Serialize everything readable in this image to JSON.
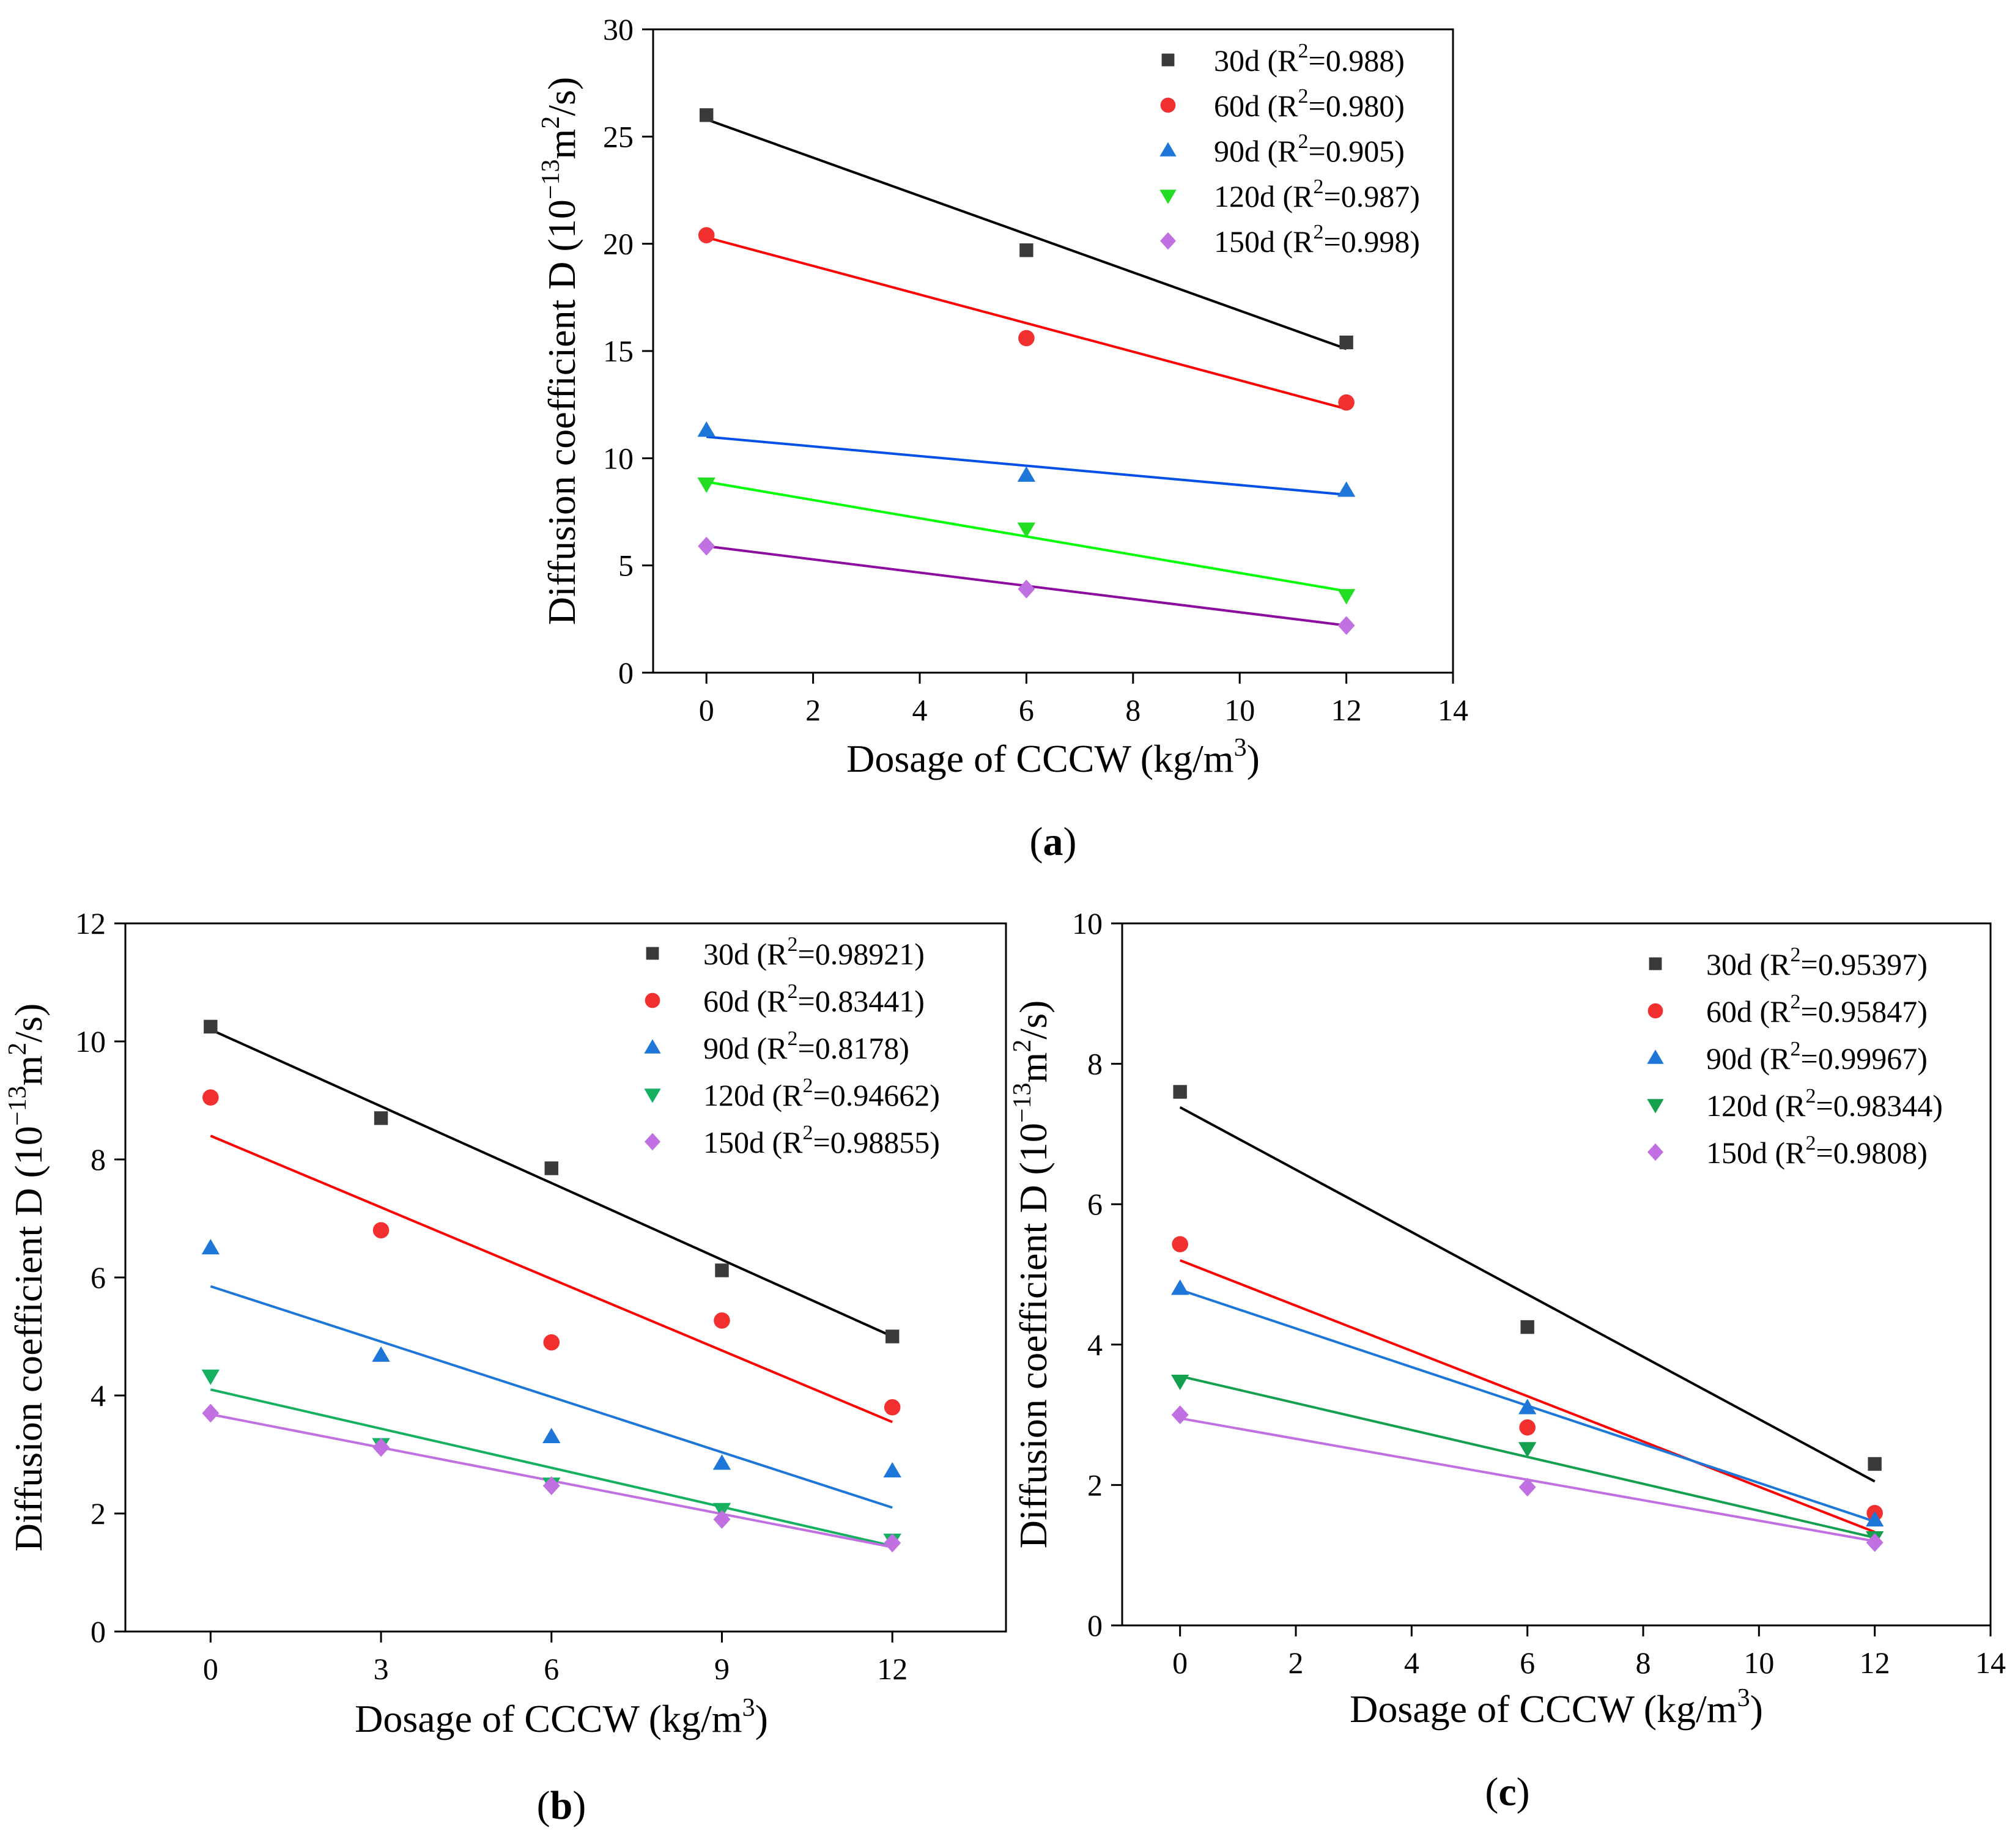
{
  "series_colors": {
    "a": {
      "30d": "#3a3a3a",
      "60d": "#f23030",
      "90d": "#1e77d8",
      "120d": "#22dd22",
      "150d": "#c070e0"
    },
    "b": {
      "30d": "#3a3a3a",
      "60d": "#f23030",
      "90d": "#1e77d8",
      "120d": "#15b060",
      "150d": "#c070e0"
    },
    "c": {
      "30d": "#3a3a3a",
      "60d": "#f23030",
      "90d": "#1e77d8",
      "120d": "#15a050",
      "150d": "#c070e0"
    }
  },
  "line_colors": {
    "a": [
      "#000000",
      "#ff0000",
      "#0050e6",
      "#00ff00",
      "#8b0c9e"
    ],
    "b": [
      "#000000",
      "#ff0000",
      "#1e77d8",
      "#15b060",
      "#c070e0"
    ],
    "c": [
      "#000000",
      "#ff0000",
      "#1e77d8",
      "#15a050",
      "#c070e0"
    ]
  },
  "chart_data": [
    {
      "id": "a",
      "caption_letter": "a",
      "type": "scatter",
      "xlabel": "Dosage of CCCW (kg/m",
      "xlabel_sup": "3",
      "xlabel_end": ")",
      "ylabel_main": "Diffusion coefficient D (10",
      "ylabel_exp": "−13",
      "ylabel_mid": "m",
      "ylabel_sup2": "2",
      "ylabel_end": "/s)",
      "xlim": [
        -1,
        14
      ],
      "ylim": [
        0,
        30
      ],
      "xticks": [
        0,
        2,
        4,
        6,
        8,
        10,
        12,
        14
      ],
      "yticks": [
        0,
        5,
        10,
        15,
        20,
        25,
        30
      ],
      "legend": [
        "30d (R",
        "60d (R",
        "90d (R",
        "120d (R",
        "150d (R"
      ],
      "r2_values": [
        "=0.988)",
        "=0.980)",
        "=0.905)",
        "=0.987)",
        "=0.998)"
      ],
      "markers": [
        "square",
        "circle",
        "triangle-up",
        "triangle-down",
        "diamond"
      ],
      "series": [
        {
          "name": "30d",
          "x": [
            0,
            6,
            12
          ],
          "y": [
            26.0,
            19.7,
            15.4
          ],
          "fit": [
            [
              0,
              25.8
            ],
            [
              12,
              15.1
            ]
          ]
        },
        {
          "name": "60d",
          "x": [
            0,
            6,
            12
          ],
          "y": [
            20.4,
            15.6,
            12.6
          ],
          "fit": [
            [
              0,
              20.3
            ],
            [
              12,
              12.3
            ]
          ]
        },
        {
          "name": "90d",
          "x": [
            0,
            6,
            12
          ],
          "y": [
            11.3,
            9.2,
            8.5
          ],
          "fit": [
            [
              0,
              11.0
            ],
            [
              12,
              8.3
            ]
          ]
        },
        {
          "name": "120d",
          "x": [
            0,
            6,
            12
          ],
          "y": [
            8.8,
            6.7,
            3.6
          ],
          "fit": [
            [
              0,
              8.9
            ],
            [
              12,
              3.8
            ]
          ]
        },
        {
          "name": "150d",
          "x": [
            0,
            6,
            12
          ],
          "y": [
            5.9,
            3.9,
            2.2
          ],
          "fit": [
            [
              0,
              5.9
            ],
            [
              12,
              2.2
            ]
          ]
        }
      ]
    },
    {
      "id": "b",
      "caption_letter": "b",
      "type": "scatter",
      "xlabel": "Dosage of CCCW (kg/m",
      "xlabel_sup": "3",
      "xlabel_end": ")",
      "ylabel_main": "Diffusion coefficient D (10",
      "ylabel_exp": "−13",
      "ylabel_mid": "m",
      "ylabel_sup2": "2",
      "ylabel_end": "/s)",
      "xlim": [
        -1.5,
        14
      ],
      "ylim": [
        0,
        12
      ],
      "xticks": [
        0,
        3,
        6,
        9,
        12
      ],
      "yticks": [
        0,
        2,
        4,
        6,
        8,
        10,
        12
      ],
      "legend": [
        "30d (R",
        "60d (R",
        "90d (R",
        "120d (R",
        "150d (R"
      ],
      "r2_values": [
        "=0.98921)",
        "=0.83441)",
        "=0.8178)",
        "=0.94662)",
        "=0.98855)"
      ],
      "markers": [
        "square",
        "circle",
        "triangle-up",
        "triangle-down",
        "diamond"
      ],
      "series": [
        {
          "name": "30d",
          "x": [
            0,
            3,
            6,
            9,
            12
          ],
          "y": [
            10.25,
            8.7,
            7.85,
            6.12,
            5.0
          ],
          "fit": [
            [
              0,
              10.2
            ],
            [
              12,
              5.0
            ]
          ]
        },
        {
          "name": "60d",
          "x": [
            0,
            3,
            6,
            9,
            12
          ],
          "y": [
            9.05,
            6.8,
            4.9,
            5.27,
            3.8
          ],
          "fit": [
            [
              0,
              8.4
            ],
            [
              12,
              3.55
            ]
          ]
        },
        {
          "name": "90d",
          "x": [
            0,
            3,
            6,
            9,
            12
          ],
          "y": [
            6.5,
            4.68,
            3.3,
            2.85,
            2.72
          ],
          "fit": [
            [
              0,
              5.85
            ],
            [
              12,
              2.1
            ]
          ]
        },
        {
          "name": "120d",
          "x": [
            0,
            3,
            6,
            9,
            12
          ],
          "y": [
            4.33,
            3.17,
            2.5,
            2.07,
            1.55
          ],
          "fit": [
            [
              0,
              4.1
            ],
            [
              12,
              1.45
            ]
          ]
        },
        {
          "name": "150d",
          "x": [
            0,
            3,
            6,
            9,
            12
          ],
          "y": [
            3.7,
            3.12,
            2.47,
            1.9,
            1.5
          ],
          "fit": [
            [
              0,
              3.68
            ],
            [
              12,
              1.43
            ]
          ]
        }
      ]
    },
    {
      "id": "c",
      "caption_letter": "c",
      "type": "scatter",
      "xlabel": "Dosage of CCCW (kg/m",
      "xlabel_sup": "3",
      "xlabel_end": ")",
      "ylabel_main": "Diffusion coefficient D (10",
      "ylabel_exp": "−13",
      "ylabel_mid": "m",
      "ylabel_sup2": "2",
      "ylabel_end": "/s)",
      "xlim": [
        -1,
        14
      ],
      "ylim": [
        0,
        10
      ],
      "xticks": [
        0,
        2,
        4,
        6,
        8,
        10,
        12,
        14
      ],
      "yticks": [
        0,
        2,
        4,
        6,
        8,
        10
      ],
      "legend": [
        "30d (R",
        "60d (R",
        "90d (R",
        "120d (R",
        "150d (R"
      ],
      "r2_values": [
        "=0.95397)",
        "=0.95847)",
        "=0.99967)",
        "=0.98344)",
        "=0.9808)"
      ],
      "markers": [
        "square",
        "circle",
        "triangle-up",
        "triangle-down",
        "diamond"
      ],
      "series": [
        {
          "name": "30d",
          "x": [
            0,
            6,
            12
          ],
          "y": [
            7.6,
            4.25,
            2.3
          ],
          "fit": [
            [
              0,
              7.38
            ],
            [
              12,
              2.05
            ]
          ]
        },
        {
          "name": "60d",
          "x": [
            0,
            6,
            12
          ],
          "y": [
            5.43,
            2.82,
            1.6
          ],
          "fit": [
            [
              0,
              5.2
            ],
            [
              12,
              1.33
            ]
          ]
        },
        {
          "name": "90d",
          "x": [
            0,
            6,
            12
          ],
          "y": [
            4.8,
            3.1,
            1.5
          ],
          "fit": [
            [
              0,
              4.78
            ],
            [
              12,
              1.48
            ]
          ]
        },
        {
          "name": "120d",
          "x": [
            0,
            6,
            12
          ],
          "y": [
            3.48,
            2.52,
            1.25
          ],
          "fit": [
            [
              0,
              3.55
            ],
            [
              12,
              1.25
            ]
          ]
        },
        {
          "name": "150d",
          "x": [
            0,
            6,
            12
          ],
          "y": [
            3.0,
            1.97,
            1.18
          ],
          "fit": [
            [
              0,
              2.95
            ],
            [
              12,
              1.2
            ]
          ]
        }
      ]
    }
  ]
}
